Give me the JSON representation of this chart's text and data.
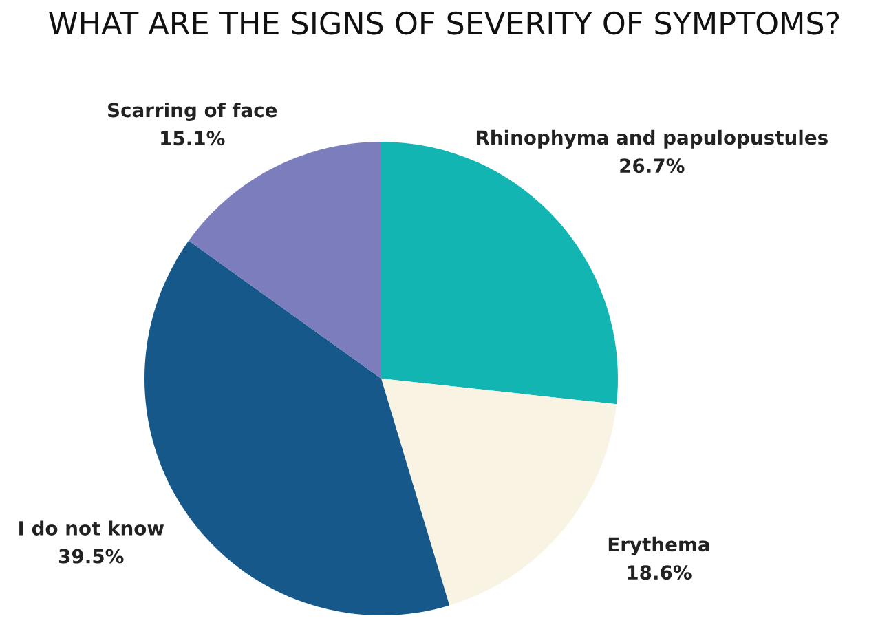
{
  "chart_data": {
    "type": "pie",
    "title": "WHAT ARE THE SIGNS OF SEVERITY OF SYMPTOMS?",
    "categories": [
      "Rhinophyma and papulopustules",
      "Erythema",
      "I do not know",
      "Scarring of face"
    ],
    "values": [
      26.7,
      18.6,
      39.5,
      15.1
    ],
    "colors": [
      "#12b5b1",
      "#f8f3e3",
      "#16588a",
      "#7b7dbd"
    ],
    "value_labels": [
      "26.7%",
      "18.6%",
      "39.5%",
      "15.1%"
    ]
  }
}
